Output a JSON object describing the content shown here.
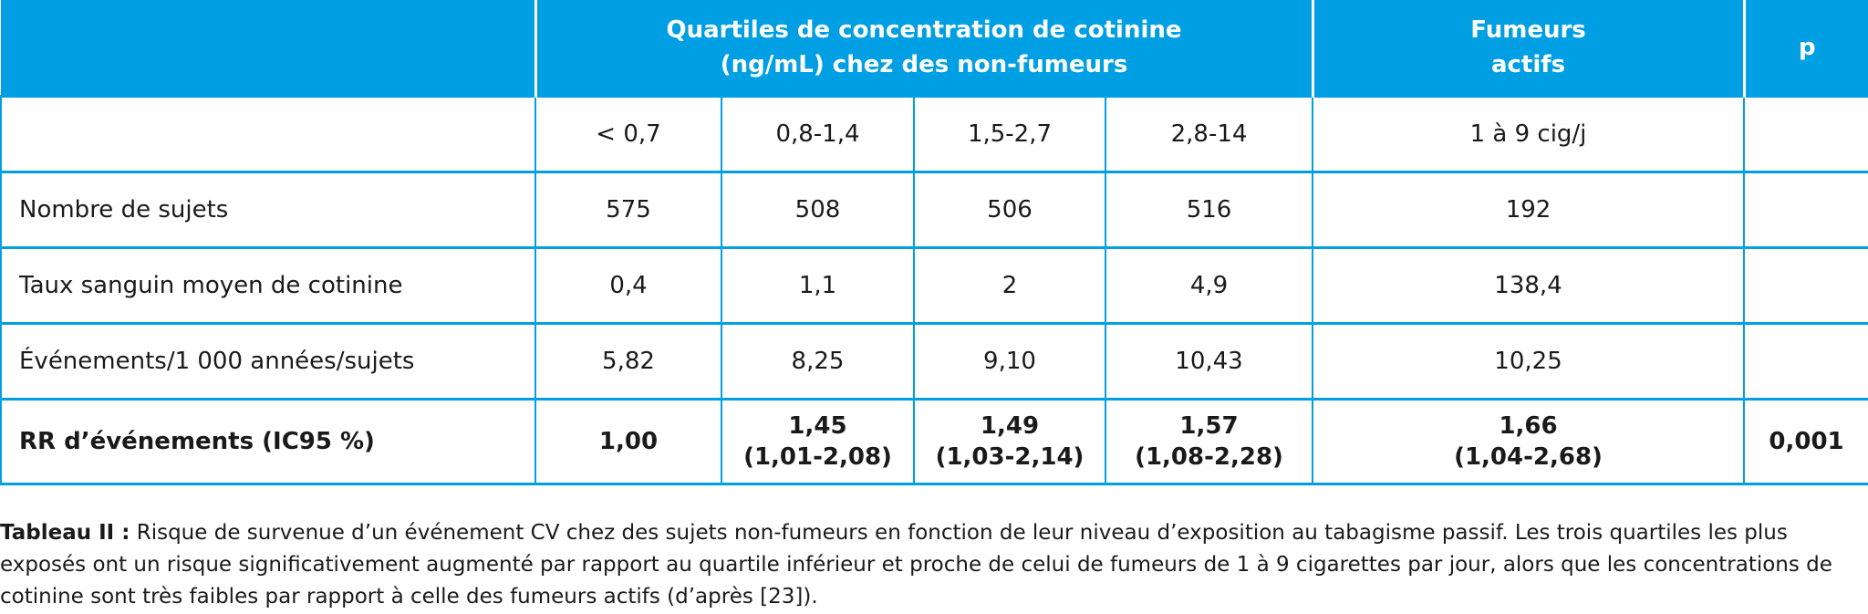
{
  "header": {
    "empty": "",
    "cotinine_title": "Quartiles de concentration de cotinine (ng/mL) chez des non-fumeurs",
    "smokers_title": "Fumeurs actifs",
    "p_title": "p"
  },
  "subheader": [
    "",
    "< 0,7",
    "0,8-1,4",
    "1,5-2,7",
    "2,8-14",
    "1 à 9 cig/j",
    ""
  ],
  "rows": [
    {
      "label": "Nombre de sujets",
      "cells": [
        "575",
        "508",
        "506",
        "516",
        "192",
        ""
      ]
    },
    {
      "label": "Taux sanguin moyen de cotinine",
      "cells": [
        "0,4",
        "1,1",
        "2",
        "4,9",
        "138,4",
        ""
      ]
    },
    {
      "label": "Événements/1 000 années/sujets",
      "cells": [
        "5,82",
        "8,25",
        "9,10",
        "10,43",
        "10,25",
        ""
      ]
    }
  ],
  "rr_row": {
    "label": "RR d’événements (IC95 %)",
    "cells": [
      {
        "value": "1,00",
        "ci": ""
      },
      {
        "value": "1,45",
        "ci": "(1,01-2,08)"
      },
      {
        "value": "1,49",
        "ci": "(1,03-2,14)"
      },
      {
        "value": "1,57",
        "ci": "(1,08-2,28)"
      },
      {
        "value": "1,66",
        "ci": "(1,04-2,68)"
      },
      {
        "value": "0,001",
        "ci": ""
      }
    ]
  },
  "caption": {
    "label": "Tableau II :",
    "text": " Risque de survenue d’un événement CV chez des sujets non-fumeurs en fonction de leur niveau d’exposition au tabagisme passif. Les trois quartiles les plus exposés ont un risque significativement augmenté par rapport au quartile inférieur et proche de celui de fumeurs de 1 à 9 cigarettes par jour, alors que les concentrations de cotinine sont très faibles par rapport à celle des fumeurs actifs (d’après [23])."
  },
  "colors": {
    "header_bg": "#009fe3",
    "header_text": "#ffffff",
    "border": "#009fe3"
  }
}
